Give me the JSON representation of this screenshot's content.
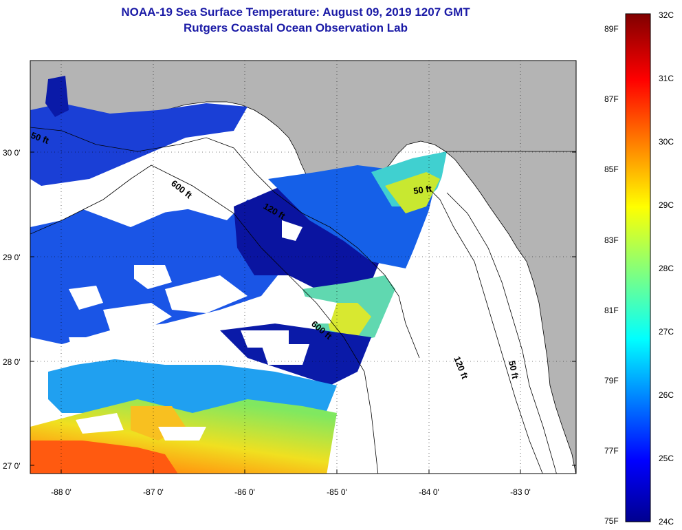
{
  "title": "NOAA-19 Sea Surface Temperature:  August 09, 2019 1207 GMT",
  "subtitle": "Rutgers Coastal Ocean Observation Lab",
  "map": {
    "lat_labels": [
      "30 0'",
      "29 0'",
      "28 0'",
      "27 0'"
    ],
    "lon_labels": [
      "-88 0'",
      "-87 0'",
      "-86 0'",
      "-85 0'",
      "-84 0'",
      "-83 0'"
    ],
    "contour_labels": [
      "50 ft",
      "600 ft",
      "120 ft",
      "50 ft",
      "600 ft",
      "120 ft",
      "50 ft"
    ],
    "land_color": "#b4b4b4",
    "no_data_color": "#ffffff"
  },
  "colorbar": {
    "fahrenheit_labels": [
      "89F",
      "87F",
      "85F",
      "83F",
      "81F",
      "79F",
      "77F",
      "75F"
    ],
    "celsius_labels": [
      "32C",
      "31C",
      "30C",
      "29C",
      "28C",
      "27C",
      "26C",
      "25C",
      "24C"
    ],
    "range_c": [
      24,
      32
    ],
    "colormap": "jet"
  }
}
